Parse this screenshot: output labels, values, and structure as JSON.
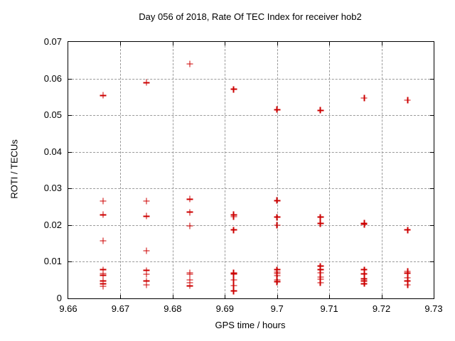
{
  "chart_data": {
    "type": "scatter",
    "title": "Day 056 of 2018, Rate Of TEC Index for receiver hob2",
    "xlabel": "GPS time / hours",
    "ylabel": "ROTI / TECUs",
    "xlim": [
      9.66,
      9.73
    ],
    "ylim": [
      0,
      0.07
    ],
    "xticks": [
      {
        "label": "9.66",
        "value": 9.66
      },
      {
        "label": "9.67",
        "value": 9.67
      },
      {
        "label": "9.68",
        "value": 9.68
      },
      {
        "label": "9.69",
        "value": 9.69
      },
      {
        "label": "9.7",
        "value": 9.7
      },
      {
        "label": "9.71",
        "value": 9.71
      },
      {
        "label": "9.72",
        "value": 9.72
      },
      {
        "label": "9.73",
        "value": 9.73
      }
    ],
    "yticks": [
      {
        "label": "0",
        "value": 0
      },
      {
        "label": "0.01",
        "value": 0.01
      },
      {
        "label": "0.02",
        "value": 0.02
      },
      {
        "label": "0.03",
        "value": 0.03
      },
      {
        "label": "0.04",
        "value": 0.04
      },
      {
        "label": "0.05",
        "value": 0.05
      },
      {
        "label": "0.06",
        "value": 0.06
      },
      {
        "label": "0.07",
        "value": 0.07
      }
    ],
    "grid": true,
    "legend_position": "none",
    "marker_shape": "plus",
    "marker_color": "#cc0000",
    "series": [
      {
        "name": "ROTI",
        "points": [
          [
            9.6667,
            0.0554
          ],
          [
            9.6667,
            0.0266
          ],
          [
            9.6667,
            0.0228
          ],
          [
            9.6667,
            0.0157
          ],
          [
            9.6667,
            0.0078
          ],
          [
            9.6667,
            0.0068
          ],
          [
            9.6667,
            0.0063
          ],
          [
            9.6667,
            0.0048
          ],
          [
            9.6667,
            0.004
          ],
          [
            9.6667,
            0.0033
          ],
          [
            9.675,
            0.0589
          ],
          [
            9.675,
            0.0266
          ],
          [
            9.675,
            0.0224
          ],
          [
            9.675,
            0.013
          ],
          [
            9.675,
            0.0076
          ],
          [
            9.675,
            0.0066
          ],
          [
            9.675,
            0.0047
          ],
          [
            9.675,
            0.0037
          ],
          [
            9.6833,
            0.064
          ],
          [
            9.6833,
            0.0271
          ],
          [
            9.6833,
            0.0235
          ],
          [
            9.6833,
            0.0198
          ],
          [
            9.6833,
            0.007
          ],
          [
            9.6833,
            0.0066
          ],
          [
            9.6833,
            0.005
          ],
          [
            9.6833,
            0.0043
          ],
          [
            9.6833,
            0.0034
          ],
          [
            9.6917,
            0.0571
          ],
          [
            9.6917,
            0.0228
          ],
          [
            9.6917,
            0.0223
          ],
          [
            9.6917,
            0.0187
          ],
          [
            9.6917,
            0.0069
          ],
          [
            9.6917,
            0.0066
          ],
          [
            9.6917,
            0.005
          ],
          [
            9.6917,
            0.0035
          ],
          [
            9.6917,
            0.002
          ],
          [
            9.7,
            0.0515
          ],
          [
            9.7,
            0.0267
          ],
          [
            9.7,
            0.0222
          ],
          [
            9.7,
            0.02
          ],
          [
            9.7,
            0.0078
          ],
          [
            9.7,
            0.0072
          ],
          [
            9.7,
            0.0068
          ],
          [
            9.7,
            0.0062
          ],
          [
            9.7,
            0.005
          ],
          [
            9.7,
            0.0045
          ],
          [
            9.7083,
            0.0513
          ],
          [
            9.7083,
            0.0222
          ],
          [
            9.7083,
            0.0204
          ],
          [
            9.7083,
            0.0088
          ],
          [
            9.7083,
            0.0078
          ],
          [
            9.7083,
            0.007
          ],
          [
            9.7083,
            0.0058
          ],
          [
            9.7083,
            0.0052
          ],
          [
            9.7083,
            0.0043
          ],
          [
            9.7167,
            0.0547
          ],
          [
            9.7167,
            0.0205
          ],
          [
            9.7167,
            0.0202
          ],
          [
            9.7167,
            0.0078
          ],
          [
            9.7167,
            0.0067
          ],
          [
            9.7167,
            0.0053
          ],
          [
            9.7167,
            0.0047
          ],
          [
            9.7167,
            0.004
          ],
          [
            9.725,
            0.0541
          ],
          [
            9.725,
            0.0187
          ],
          [
            9.725,
            0.0074
          ],
          [
            9.725,
            0.0069
          ],
          [
            9.725,
            0.0056
          ],
          [
            9.725,
            0.0047
          ],
          [
            9.725,
            0.0037
          ]
        ]
      }
    ]
  }
}
